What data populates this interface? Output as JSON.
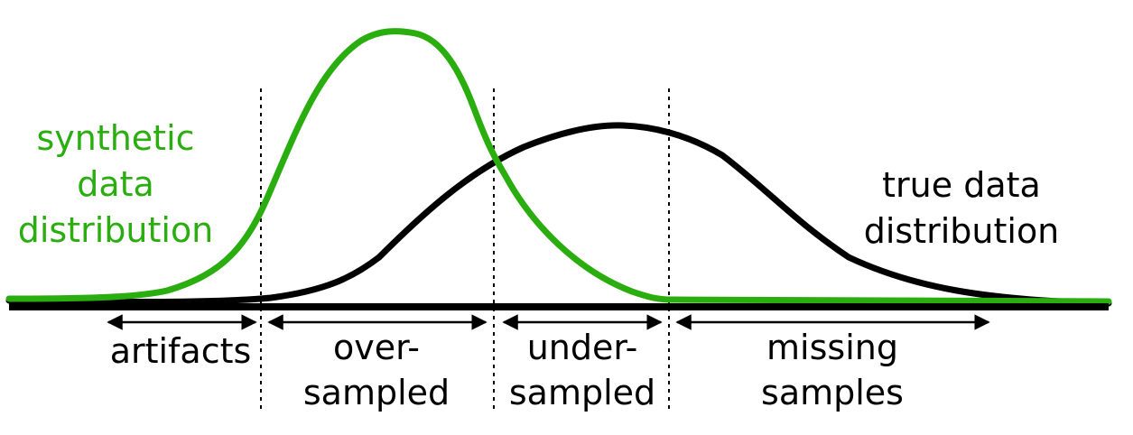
{
  "labels": {
    "synthetic": [
      "synthetic",
      "data",
      "distribution"
    ],
    "true": [
      "true data",
      "distribution"
    ],
    "regions": {
      "artifacts": "artifacts",
      "oversampled": [
        "over-",
        "sampled"
      ],
      "undersampled": [
        "under-",
        "sampled"
      ],
      "missing": [
        "missing",
        "samples"
      ]
    }
  },
  "colors": {
    "synthetic_curve": "#2aad0f",
    "true_curve": "#000000",
    "axis": "#000000"
  }
}
